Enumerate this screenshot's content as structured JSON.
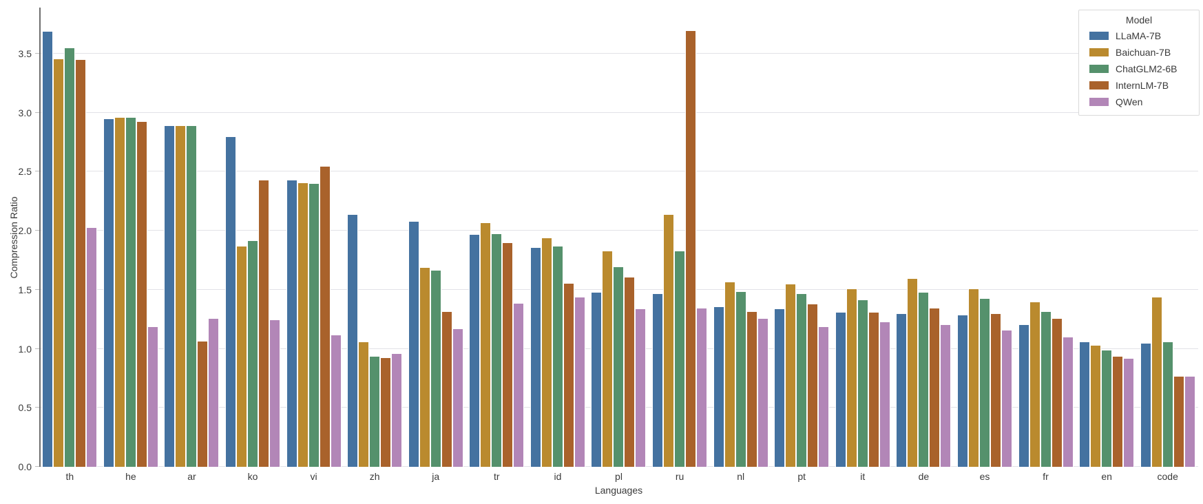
{
  "chart_data": {
    "type": "bar",
    "title": "",
    "xlabel": "Languages",
    "ylabel": "Compression Ratio",
    "categories": [
      "th",
      "he",
      "ar",
      "ko",
      "vi",
      "zh",
      "ja",
      "tr",
      "id",
      "pl",
      "ru",
      "nl",
      "pt",
      "it",
      "de",
      "es",
      "fr",
      "en",
      "code"
    ],
    "series": [
      {
        "name": "LLaMA-7B",
        "color": "#4472A0",
        "values": [
          3.69,
          2.95,
          2.89,
          2.8,
          2.43,
          2.14,
          2.08,
          1.97,
          1.86,
          1.48,
          1.47,
          1.36,
          1.34,
          1.31,
          1.3,
          1.29,
          1.21,
          1.06,
          1.05
        ]
      },
      {
        "name": "Baichuan-7B",
        "color": "#BA8A2E",
        "values": [
          3.46,
          2.96,
          2.89,
          1.87,
          2.41,
          1.06,
          1.69,
          2.07,
          1.94,
          1.83,
          2.14,
          1.57,
          1.55,
          1.51,
          1.6,
          1.51,
          1.4,
          1.03,
          1.44
        ]
      },
      {
        "name": "ChatGLM2-6B",
        "color": "#55916C",
        "values": [
          3.55,
          2.96,
          2.89,
          1.92,
          2.4,
          0.94,
          1.67,
          1.98,
          1.87,
          1.7,
          1.83,
          1.49,
          1.47,
          1.42,
          1.48,
          1.43,
          1.32,
          0.99,
          1.06
        ]
      },
      {
        "name": "InternLM-7B",
        "color": "#A9622B",
        "values": [
          3.45,
          2.93,
          1.07,
          2.43,
          2.55,
          0.93,
          1.32,
          1.9,
          1.56,
          1.61,
          3.7,
          1.32,
          1.38,
          1.31,
          1.35,
          1.3,
          1.26,
          0.94,
          0.77
        ]
      },
      {
        "name": "QWen",
        "color": "#B286B7",
        "values": [
          2.03,
          1.19,
          1.26,
          1.25,
          1.12,
          0.96,
          1.17,
          1.39,
          1.44,
          1.34,
          1.35,
          1.26,
          1.19,
          1.23,
          1.21,
          1.16,
          1.1,
          0.92,
          0.77
        ]
      }
    ],
    "ylim": [
      0,
      3.89
    ],
    "yticks": [
      0.0,
      0.5,
      1.0,
      1.5,
      2.0,
      2.5,
      3.0,
      3.5
    ],
    "grid": true,
    "legend": {
      "title": "Model",
      "position": "upper right"
    }
  }
}
